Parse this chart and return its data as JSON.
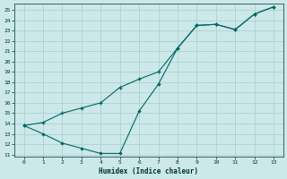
{
  "xlabel": "Humidex (Indice chaleur)",
  "background_color": "#cce8e8",
  "grid_color": "#aacccc",
  "line_color": "#006666",
  "xlim": [
    -0.5,
    13.5
  ],
  "ylim": [
    10.8,
    25.6
  ],
  "xticks": [
    0,
    1,
    2,
    3,
    4,
    5,
    6,
    7,
    8,
    9,
    10,
    11,
    12,
    13
  ],
  "yticks": [
    11,
    12,
    13,
    14,
    15,
    16,
    17,
    18,
    19,
    20,
    21,
    22,
    23,
    24,
    25
  ],
  "s1_x": [
    0,
    1,
    2,
    3,
    4,
    5,
    6,
    7,
    8,
    9,
    10,
    11,
    12,
    13
  ],
  "s1_y": [
    13.8,
    13.0,
    12.1,
    11.6,
    11.1,
    11.1,
    15.2,
    17.8,
    21.3,
    23.5,
    23.6,
    23.1,
    24.6,
    25.3
  ],
  "s2_x": [
    0,
    1,
    2,
    3,
    4,
    5,
    6,
    7,
    8,
    9,
    10,
    11,
    12,
    13
  ],
  "s2_y": [
    13.8,
    14.1,
    15.0,
    15.5,
    16.0,
    17.5,
    18.3,
    19.0,
    21.3,
    23.5,
    23.6,
    23.1,
    24.6,
    25.3
  ],
  "font_family": "monospace"
}
